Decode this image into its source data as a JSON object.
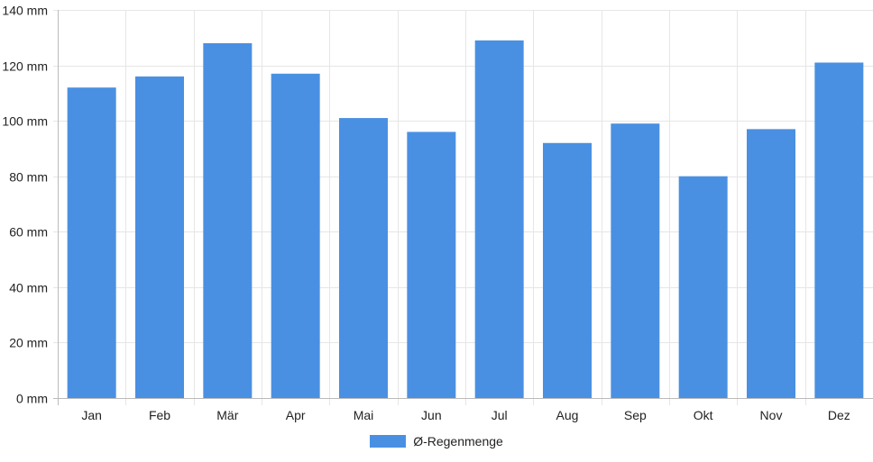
{
  "chart_data": {
    "type": "bar",
    "categories": [
      "Jan",
      "Feb",
      "Mär",
      "Apr",
      "Mai",
      "Jun",
      "Jul",
      "Aug",
      "Sep",
      "Okt",
      "Nov",
      "Dez"
    ],
    "series": [
      {
        "name": "Ø-Regenmenge",
        "values": [
          112,
          116,
          128,
          117,
          101,
          96,
          129,
          92,
          99,
          80,
          97,
          121
        ]
      }
    ],
    "ylim": [
      0,
      140
    ],
    "y_ticks": [
      0,
      20,
      40,
      60,
      80,
      100,
      120,
      140
    ],
    "y_tick_suffix": " mm",
    "grid": true,
    "legend_position": "bottom-center",
    "colors": {
      "bar": "#4a90e2",
      "grid": "#e6e6e6",
      "axis": "#bbbbbb"
    }
  }
}
